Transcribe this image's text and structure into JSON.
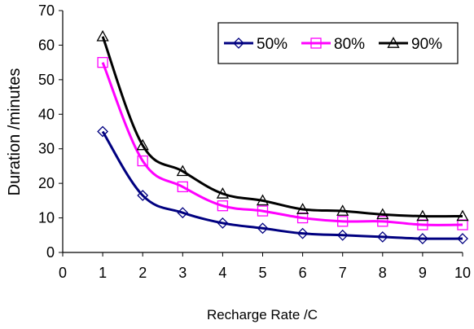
{
  "chart_data": {
    "type": "line",
    "xlabel": "Recharge Rate /C",
    "ylabel": "Duration /minutes",
    "xlim": [
      0,
      10
    ],
    "ylim": [
      0,
      70
    ],
    "xticks": [
      0,
      1,
      2,
      3,
      4,
      5,
      6,
      7,
      8,
      9,
      10
    ],
    "yticks": [
      0,
      10,
      20,
      30,
      40,
      50,
      60,
      70
    ],
    "grid": false,
    "legend_position": "top-right",
    "x": [
      1,
      2,
      3,
      4,
      5,
      6,
      7,
      8,
      9,
      10
    ],
    "series": [
      {
        "name": "50%",
        "color": "#000080",
        "marker": "diamond",
        "values": [
          35,
          16.5,
          11.5,
          8.5,
          7,
          5.5,
          5,
          4.5,
          4,
          4
        ]
      },
      {
        "name": "80%",
        "color": "#ff00ff",
        "marker": "square",
        "values": [
          55,
          26.5,
          19,
          13.5,
          12,
          10,
          9,
          9,
          8,
          8
        ]
      },
      {
        "name": "90%",
        "color": "#000000",
        "marker": "triangle",
        "values": [
          62.5,
          31,
          23.5,
          17,
          15,
          12.5,
          12,
          11,
          10.5,
          10.5
        ]
      }
    ]
  }
}
